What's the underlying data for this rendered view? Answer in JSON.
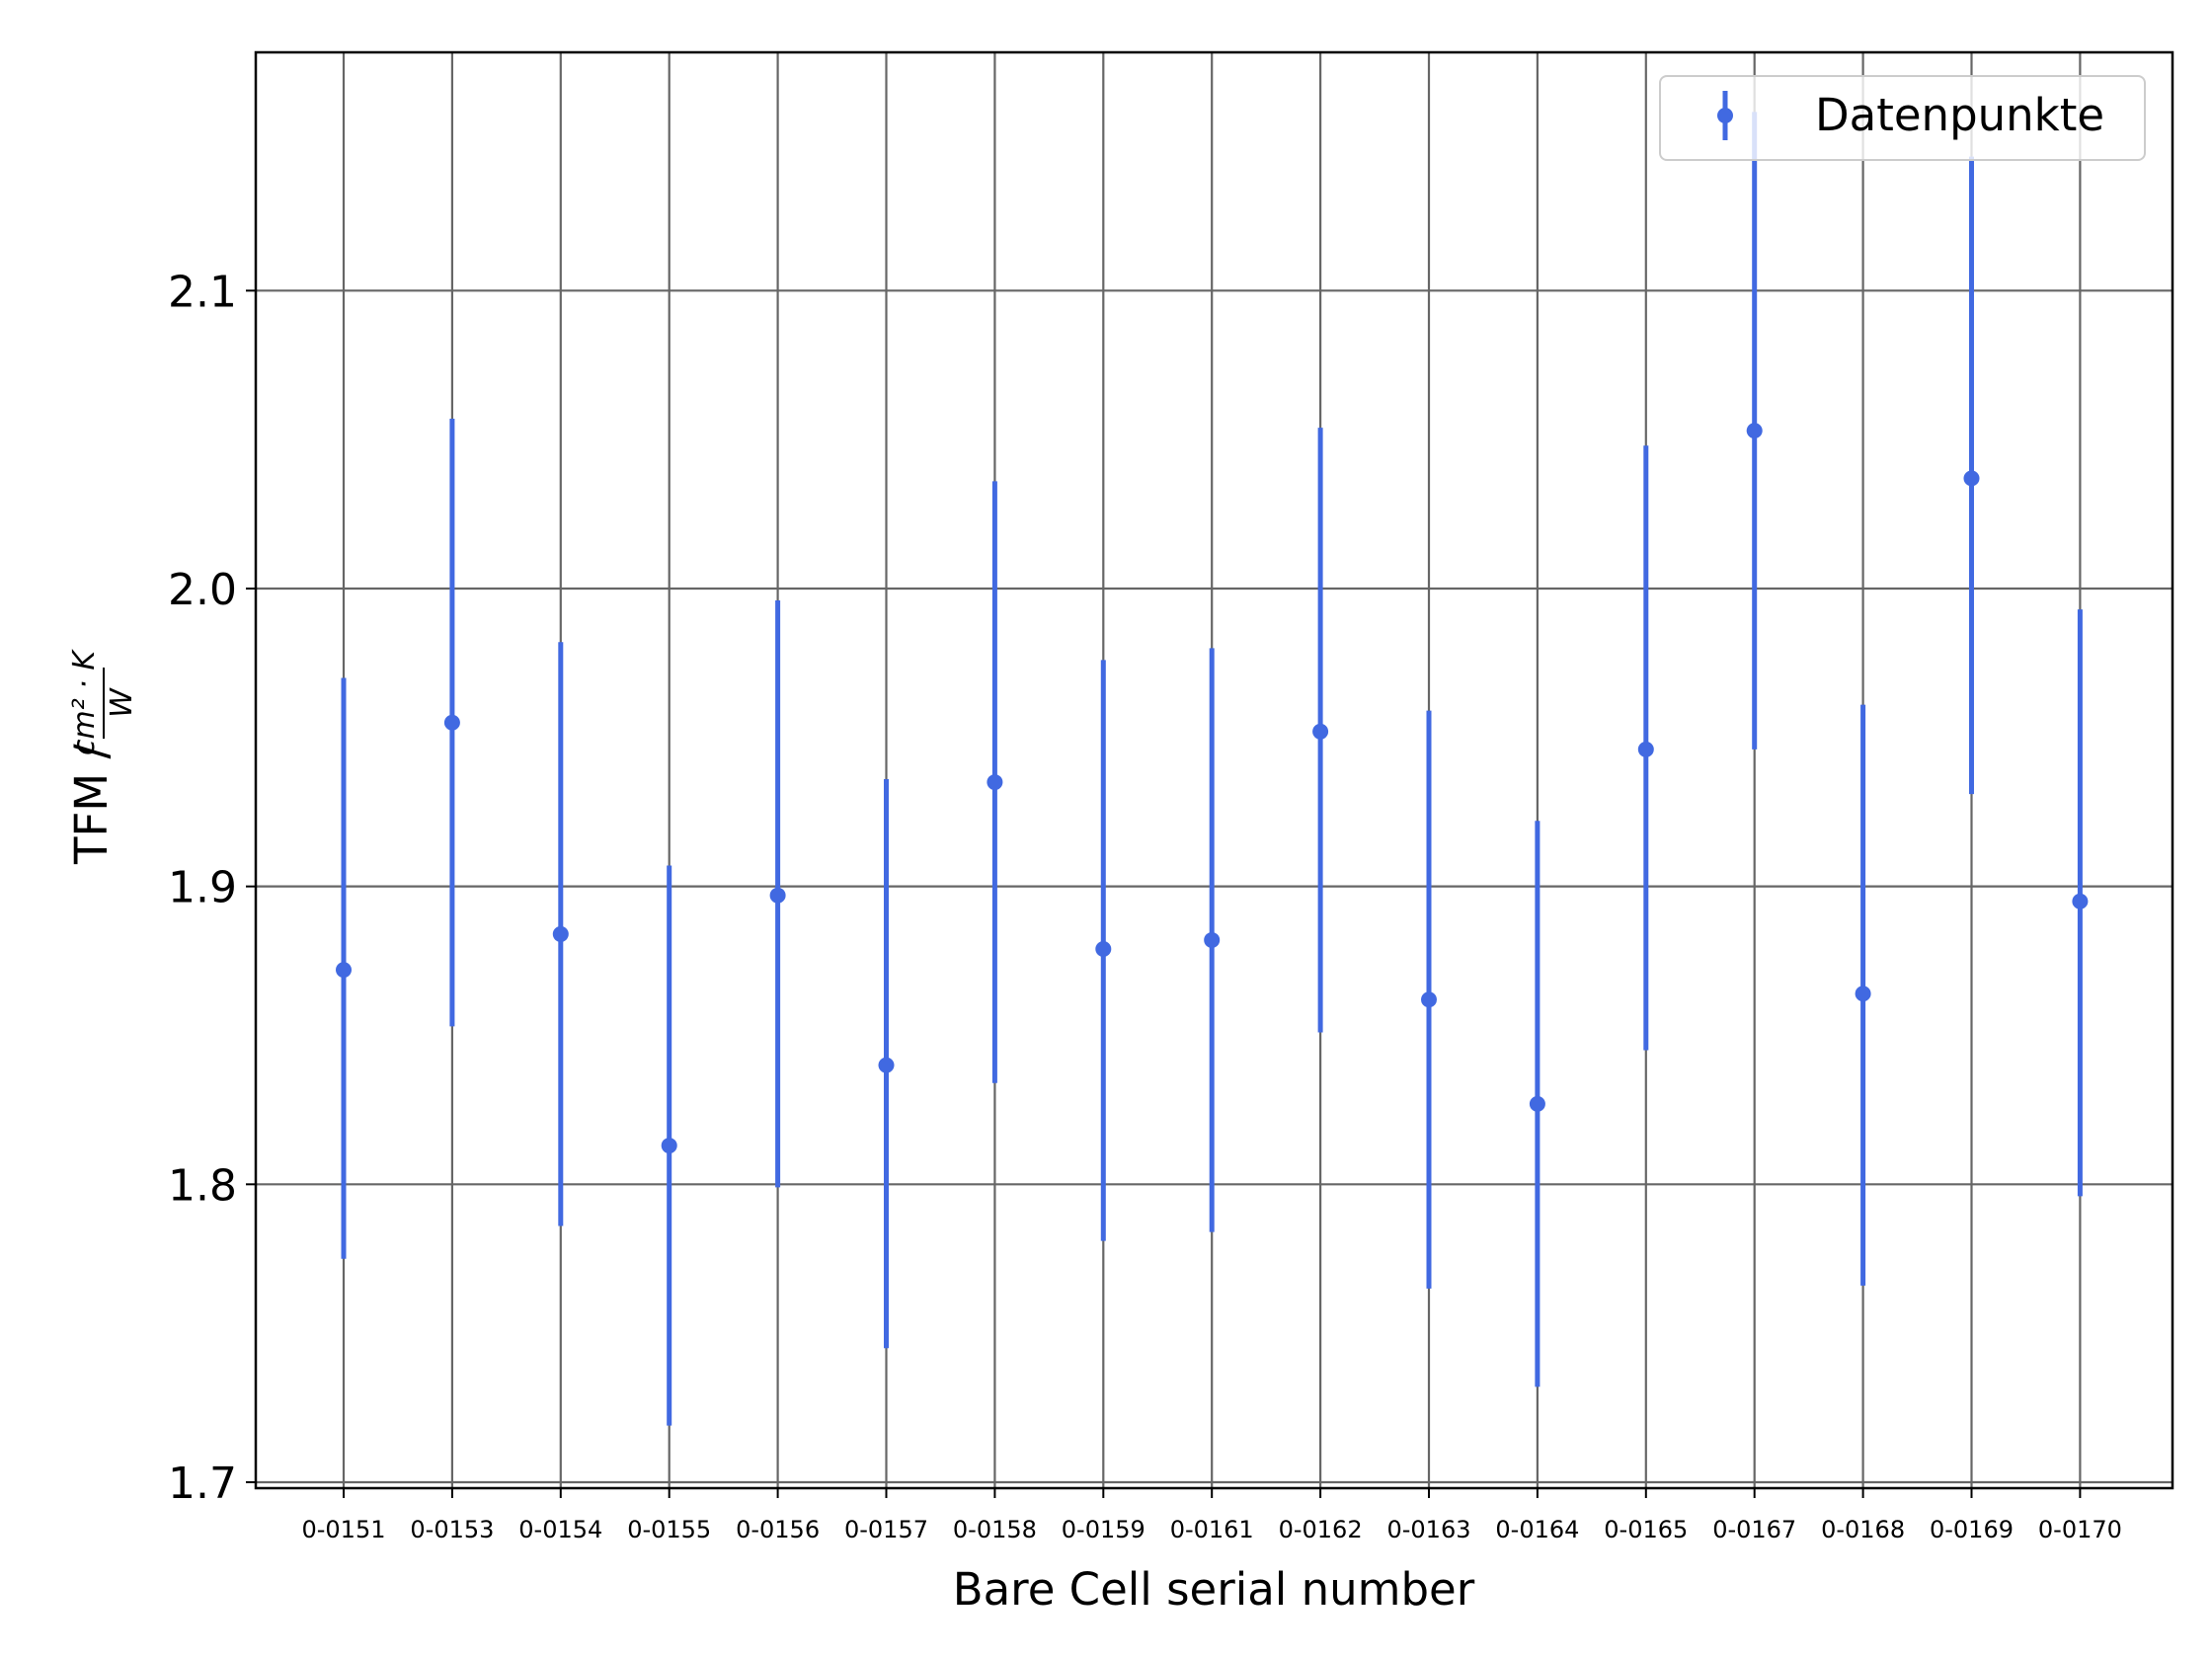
{
  "chart_data": {
    "type": "errorbar",
    "xlabel": "Bare Cell serial number",
    "ylabel_prefix": "TFM / ",
    "ylabel_fraction_numerator": "cm² · K",
    "ylabel_fraction_denominator": "W",
    "ylim": [
      1.698,
      2.18
    ],
    "yticks": [
      1.7,
      1.8,
      1.9,
      2.0,
      2.1
    ],
    "ytick_labels": [
      "1.7",
      "1.8",
      "1.9",
      "2.0",
      "2.1"
    ],
    "grid": true,
    "legend_position": "top-right",
    "categories": [
      "0-0151",
      "0-0153",
      "0-0154",
      "0-0155",
      "0-0156",
      "0-0157",
      "0-0158",
      "0-0159",
      "0-0161",
      "0-0162",
      "0-0163",
      "0-0164",
      "0-0165",
      "0-0167",
      "0-0168",
      "0-0169",
      "0-0170"
    ],
    "series": [
      {
        "name": "Datenpunkte",
        "color": "#4169e1",
        "values": [
          1.872,
          1.955,
          1.884,
          1.813,
          1.897,
          1.84,
          1.935,
          1.879,
          1.882,
          1.952,
          1.862,
          1.827,
          1.946,
          2.053,
          1.864,
          2.037,
          1.895
        ],
        "lower": [
          1.775,
          1.853,
          1.786,
          1.719,
          1.799,
          1.745,
          1.834,
          1.781,
          1.784,
          1.851,
          1.765,
          1.732,
          1.845,
          1.946,
          1.766,
          1.931,
          1.796
        ],
        "upper": [
          1.97,
          2.057,
          1.982,
          1.907,
          1.996,
          1.936,
          2.036,
          1.976,
          1.98,
          2.054,
          1.959,
          1.922,
          2.048,
          2.16,
          1.961,
          2.145,
          1.993
        ]
      }
    ]
  }
}
